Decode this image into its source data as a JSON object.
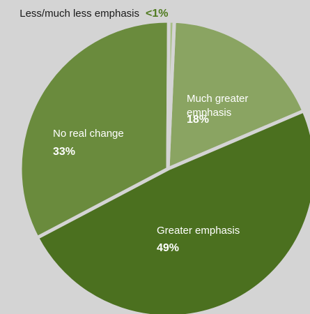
{
  "chart_data": {
    "type": "pie",
    "slices": [
      {
        "label": "Much greater emphasis",
        "label_lines": [
          "Much greater",
          "emphasis"
        ],
        "value": 18,
        "value_label": "18%",
        "color": "#8aa462"
      },
      {
        "label": "Greater emphasis",
        "label_lines": [
          "Greater emphasis"
        ],
        "value": 49,
        "value_label": "49%",
        "color": "#4b701f"
      },
      {
        "label": "No real change",
        "label_lines": [
          "No real change"
        ],
        "value": 33,
        "value_label": "33%",
        "color": "#6a8b3d"
      },
      {
        "label": "Less/much less emphasis",
        "label_lines": [
          "Less/much less emphasis"
        ],
        "value": 0.6,
        "value_label": "<1%",
        "color": "#a7bf85"
      }
    ],
    "outside_label_color": "#4f7a1f",
    "separator_color": "#d4d4d4"
  }
}
